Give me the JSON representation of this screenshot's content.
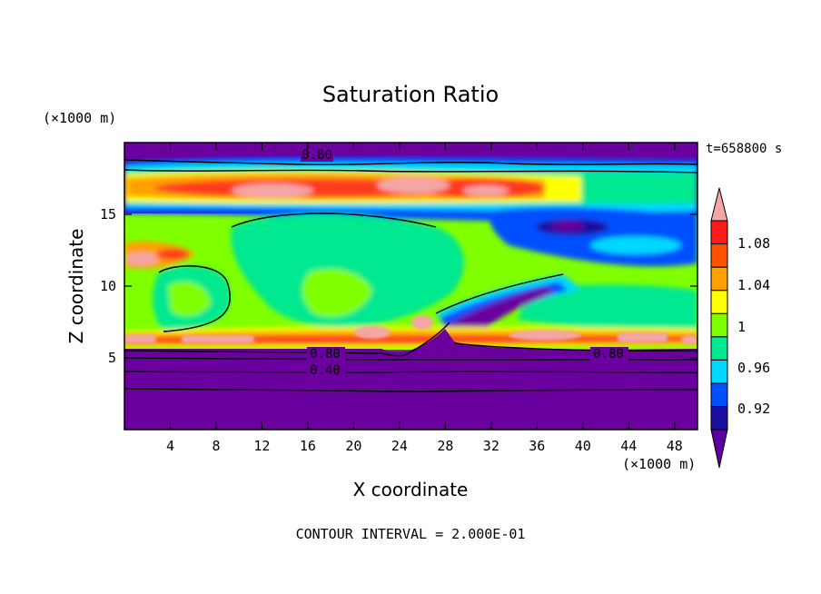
{
  "chart_data": {
    "type": "heatmap",
    "title": "Saturation Ratio",
    "xlabel": "X coordinate",
    "ylabel": "Z coordinate",
    "x_unit_label": "(×1000 m)",
    "y_unit_label": "(×1000 m)",
    "time_label": "t=658800 s",
    "footer": "CONTOUR INTERVAL = 2.000E-01",
    "xlim": [
      0,
      50
    ],
    "ylim": [
      0,
      20
    ],
    "x_ticks": [
      4,
      8,
      12,
      16,
      20,
      24,
      28,
      32,
      36,
      40,
      44,
      48
    ],
    "y_ticks": [
      5,
      10,
      15
    ],
    "colorbar": {
      "tick_labels": [
        "0.92",
        "0.96",
        "1",
        "1.04",
        "1.08"
      ],
      "levels": [
        0.92,
        0.96,
        1.0,
        1.04,
        1.08
      ],
      "colors": [
        "#5a00a0",
        "#1a0fa0",
        "#0050ff",
        "#00d8ff",
        "#00e890",
        "#80ff00",
        "#ffff00",
        "#ffa000",
        "#ff5000",
        "#ff1a1a",
        "#f4a6a6"
      ],
      "extend": "both"
    },
    "contour_labels": [
      {
        "text": "0.80",
        "x": 13.0,
        "z": 19.1
      },
      {
        "text": "0.80",
        "x": 13.0,
        "z": 5.3
      },
      {
        "text": "0.40",
        "x": 13.0,
        "z": 4.1
      },
      {
        "text": "0.80",
        "x": 33.0,
        "z": 5.3
      }
    ],
    "regions": [
      {
        "z_range": [
          0,
          4.5
        ],
        "x_range": [
          0,
          50
        ],
        "color_index": 0,
        "description": "dry lower layer"
      },
      {
        "z_range": [
          5.5,
          11
        ],
        "x_range": [
          0,
          50
        ],
        "color_index": 5,
        "description": "near-saturation layer"
      },
      {
        "z_range": [
          16,
          18
        ],
        "x_range": [
          0,
          50
        ],
        "color_index": 8,
        "description": "supersaturated band"
      },
      {
        "z_range": [
          18.5,
          20
        ],
        "x_range": [
          0,
          50
        ],
        "color_index": 0,
        "description": "dry upper layer"
      }
    ]
  }
}
